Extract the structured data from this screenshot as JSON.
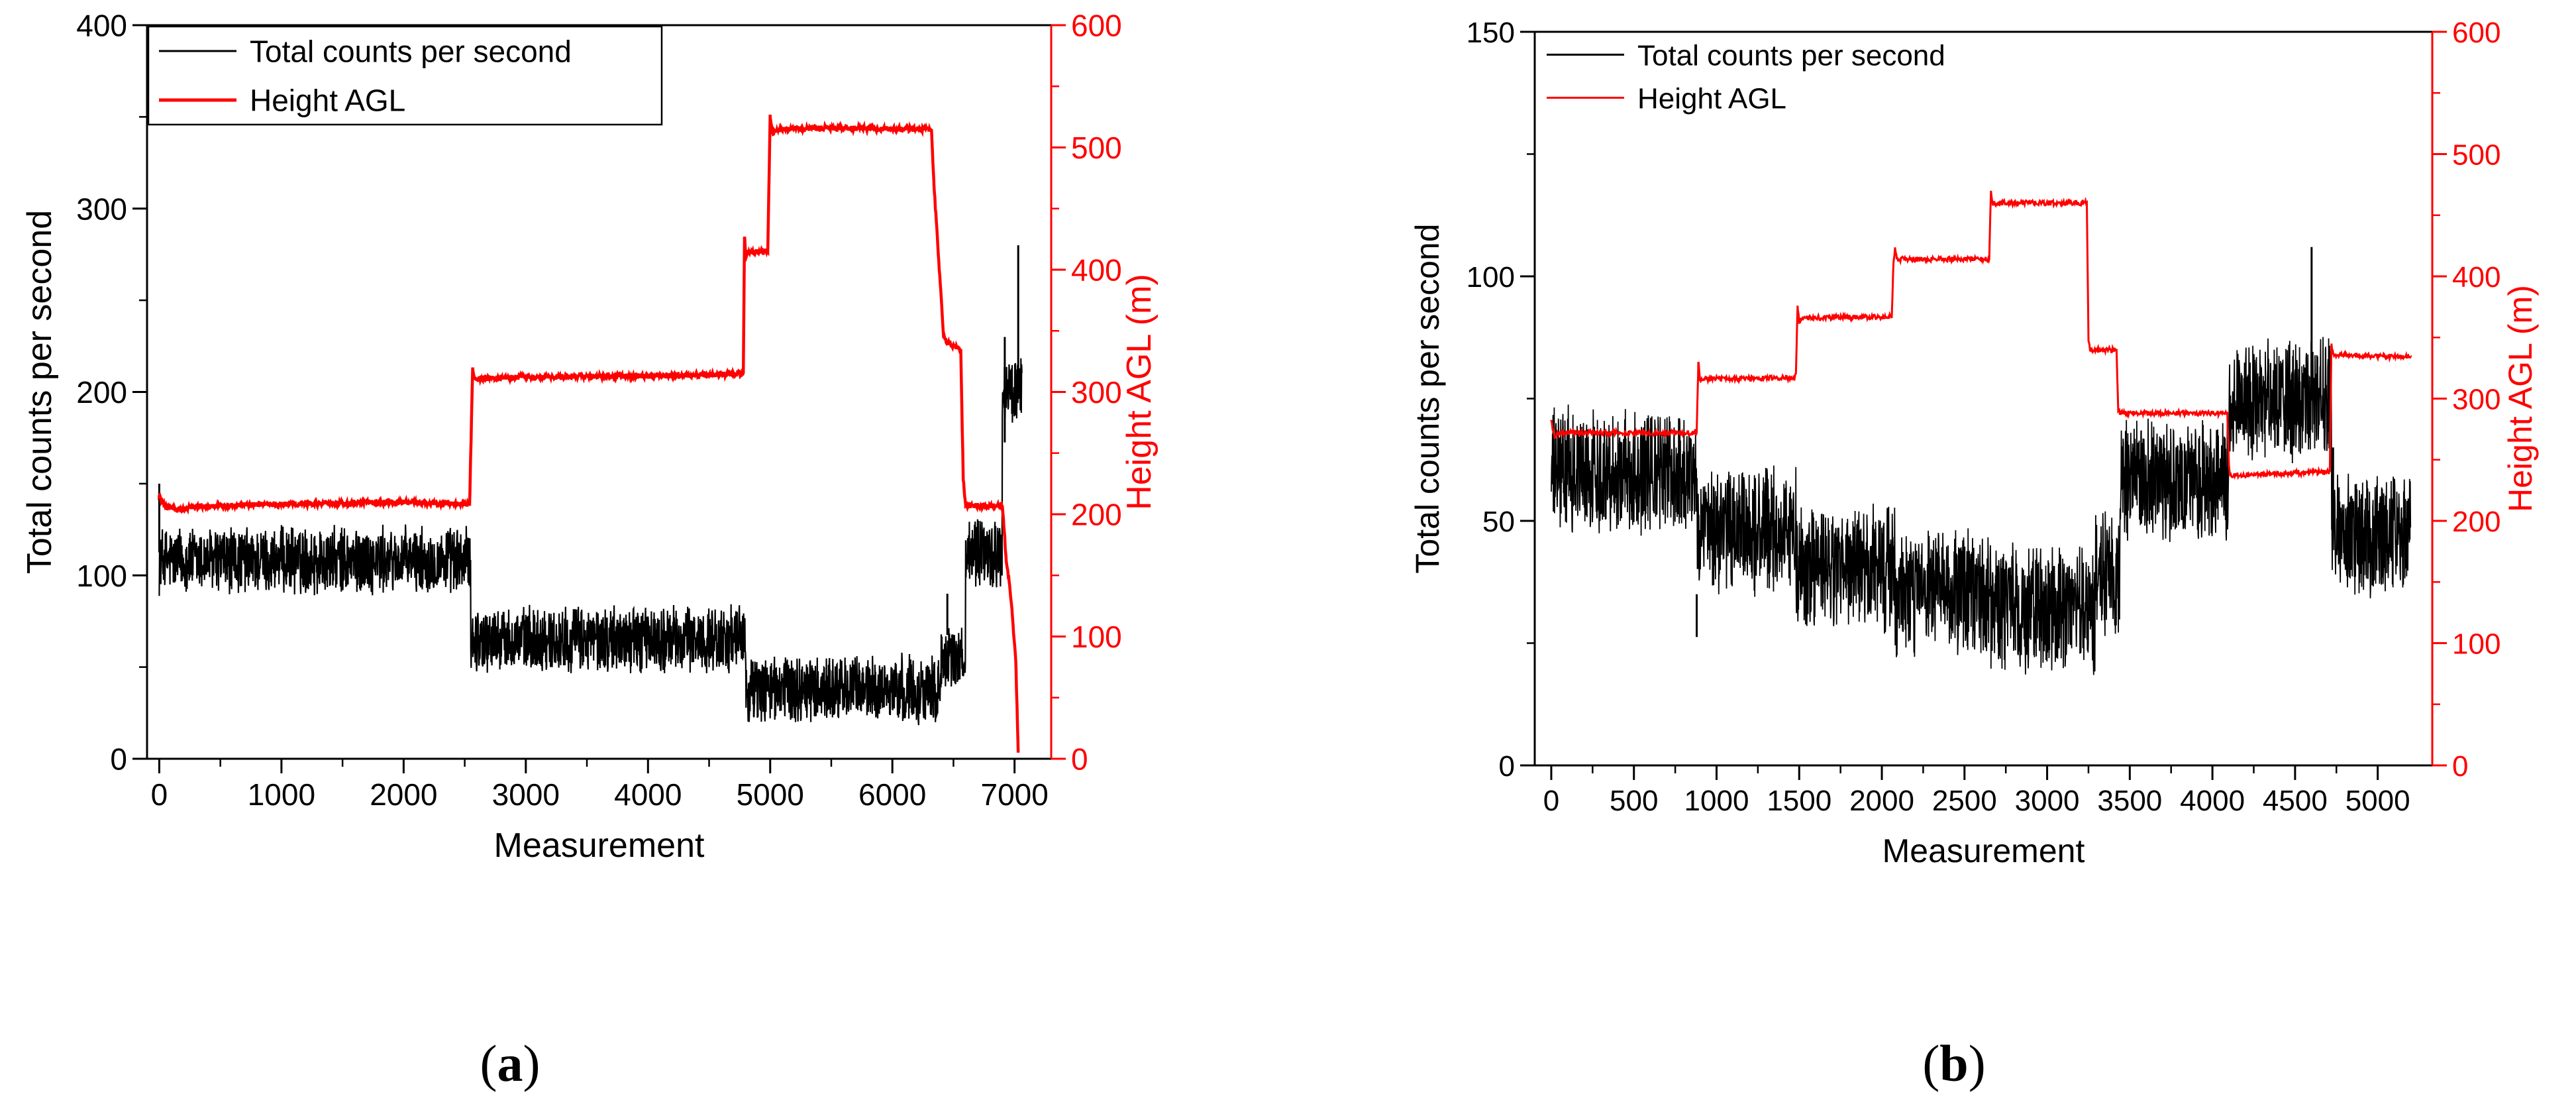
{
  "chart_data": [
    {
      "type": "line",
      "panel": "a",
      "xlabel": "Measurement",
      "ylabel": "Total counts per second",
      "y2label": "Height AGL (m)",
      "xlim": [
        -100,
        7300
      ],
      "ylim": [
        0,
        400
      ],
      "y2lim": [
        0,
        600
      ],
      "xticks": [
        0,
        1000,
        2000,
        3000,
        4000,
        5000,
        6000,
        7000
      ],
      "yticks": [
        0,
        100,
        200,
        300,
        400
      ],
      "y2ticks": [
        0,
        100,
        200,
        300,
        400,
        500,
        600
      ],
      "colors": {
        "counts": "#000000",
        "height": "#ff0000"
      },
      "legend": {
        "position": "top-left",
        "entries": [
          "Total counts per second",
          "Height AGL"
        ]
      },
      "series": [
        {
          "name": "Total counts per second",
          "axis": "left",
          "noise": 10,
          "segments": [
            [
              0,
              2550,
              108
            ],
            [
              2550,
              4800,
              65
            ],
            [
              4800,
              6400,
              38
            ],
            [
              6400,
              6600,
              55
            ],
            [
              6600,
              6900,
              112
            ],
            [
              6900,
              7060,
              200
            ]
          ],
          "spikes": [
            [
              0,
              150
            ],
            [
              6450,
              90
            ],
            [
              6920,
              230
            ],
            [
              7030,
              280
            ]
          ]
        },
        {
          "name": "Height AGL",
          "axis": "right",
          "noise": 2,
          "x": [
            0,
            30,
            60,
            150,
            300,
            800,
            1500,
            2000,
            2540,
            2565,
            2580,
            2600,
            2800,
            3500,
            4000,
            4500,
            4780,
            4790,
            4800,
            4850,
            4980,
            5000,
            5020,
            5040,
            5060,
            5500,
            6000,
            6320,
            6340,
            6420,
            6450,
            6560,
            6580,
            6600,
            6900,
            6910,
            6930,
            6950,
            6980,
            7010,
            7030
          ],
          "y": [
            215,
            208,
            206,
            203,
            206,
            208,
            209,
            210,
            208,
            320,
            312,
            310,
            312,
            313,
            313,
            314,
            315,
            427,
            412,
            415,
            415,
            525,
            512,
            513,
            515,
            516,
            515,
            515,
            470,
            345,
            340,
            335,
            228,
            207,
            207,
            195,
            165,
            150,
            120,
            80,
            5
          ]
        }
      ]
    },
    {
      "type": "line",
      "panel": "b",
      "xlabel": "Measurement",
      "ylabel": "Total counts per second",
      "y2label": "Height AGL (m)",
      "xlim": [
        -100,
        5330
      ],
      "ylim": [
        0,
        150
      ],
      "y2lim": [
        0,
        600
      ],
      "xticks": [
        0,
        500,
        1000,
        1500,
        2000,
        2500,
        3000,
        3500,
        4000,
        4500,
        5000
      ],
      "yticks": [
        0,
        50,
        100,
        150
      ],
      "y2ticks": [
        0,
        100,
        200,
        300,
        400,
        500,
        600
      ],
      "colors": {
        "counts": "#000000",
        "height": "#ff0000"
      },
      "legend": {
        "position": "top-left",
        "entries": [
          "Total counts per second",
          "Height AGL"
        ]
      },
      "series": [
        {
          "name": "Total counts per second",
          "axis": "left",
          "noise": 7,
          "segments": [
            [
              0,
              880,
              60
            ],
            [
              880,
              1480,
              48
            ],
            [
              1480,
              2080,
              40
            ],
            [
              2080,
              2660,
              35
            ],
            [
              2660,
              3290,
              32
            ],
            [
              3290,
              3440,
              40
            ],
            [
              3440,
              4100,
              58
            ],
            [
              4100,
              4720,
              75
            ],
            [
              4720,
              5200,
              47
            ]
          ],
          "spikes": [
            [
              880,
              35
            ],
            [
              4600,
              106
            ],
            [
              4730,
              65
            ]
          ]
        },
        {
          "name": "Height AGL",
          "axis": "right",
          "noise": 2,
          "x": [
            0,
            20,
            40,
            880,
            890,
            900,
            910,
            1470,
            1480,
            1490,
            1500,
            1510,
            2060,
            2070,
            2080,
            2090,
            2100,
            2650,
            2660,
            2670,
            2690,
            2700,
            3240,
            3250,
            3260,
            3300,
            3420,
            3430,
            3440,
            3460,
            4090,
            4100,
            4110,
            4700,
            4710,
            4720,
            4730,
            5200
          ],
          "y": [
            282,
            268,
            272,
            272,
            330,
            315,
            316,
            317,
            320,
            376,
            362,
            366,
            367,
            410,
            423,
            414,
            414,
            414,
            470,
            460,
            460,
            460,
            460,
            347,
            340,
            340,
            340,
            290,
            289,
            288,
            288,
            245,
            237,
            240,
            240,
            345,
            336,
            334
          ]
        }
      ]
    }
  ],
  "captions": {
    "a": "a",
    "b": "b"
  }
}
